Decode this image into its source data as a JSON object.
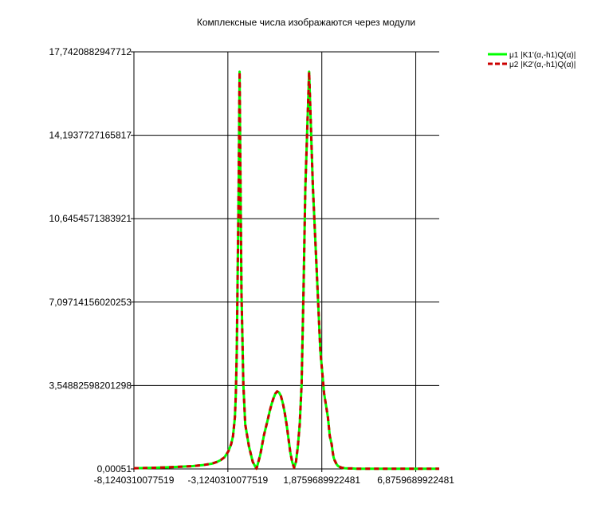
{
  "chart_data": {
    "type": "line",
    "title": "Комплексные числа изображаются через модули",
    "xlabel": "",
    "ylabel": "",
    "xlim": [
      -8.1240310077519,
      8.1240310077519
    ],
    "ylim": [
      0.00051,
      17.7420882947712
    ],
    "x_ticks": [
      -8.1240310077519,
      -3.1240310077519,
      1.8759689922481,
      6.8759689922481
    ],
    "x_tick_labels": [
      "-8,1240310077519",
      "-3,1240310077519",
      "1,8759689922481",
      "6,8759689922481"
    ],
    "y_ticks": [
      0.00051,
      3.54882598201298,
      7.09714156020253,
      10.6454571383921,
      14.1937727165817,
      17.7420882947712
    ],
    "y_tick_labels": [
      "0,00051",
      "3,54882598201298",
      "7,09714156020253",
      "10,6454571383921",
      "14,1937727165817",
      "17,7420882947712"
    ],
    "grid": true,
    "legend_position": "top-right",
    "series": [
      {
        "name": "μ1 |K1'(α,-h1)Q(α)|",
        "color": "#00ff00",
        "style": "solid",
        "x": [
          -8.124,
          -7.0,
          -6.0,
          -5.0,
          -4.5,
          -4.0,
          -3.7,
          -3.5,
          -3.3,
          -3.1,
          -2.95,
          -2.85,
          -2.75,
          -2.7,
          -2.65,
          -2.6,
          -2.55,
          -2.5,
          -2.45,
          -2.4,
          -2.3,
          -2.2,
          -2.0,
          -1.8,
          -1.6,
          -1.4,
          -1.2,
          -1.0,
          -0.9,
          -0.8,
          -0.7,
          -0.6,
          -0.5,
          -0.4,
          -0.3,
          -0.2,
          -0.1,
          0.0,
          0.1,
          0.2,
          0.3,
          0.4,
          0.5,
          0.6,
          0.7,
          0.8,
          0.9,
          1.0,
          1.2,
          1.4,
          1.6,
          1.8,
          2.0,
          2.2,
          2.3,
          2.4,
          2.45,
          2.5,
          2.55,
          2.6,
          2.65,
          2.7,
          2.75,
          2.85,
          2.95,
          3.1,
          3.3,
          3.5,
          3.7,
          4.0,
          4.5,
          5.0,
          6.0,
          7.0,
          8.124
        ],
        "values": [
          0.03,
          0.05,
          0.08,
          0.12,
          0.16,
          0.22,
          0.3,
          0.38,
          0.5,
          0.75,
          1.05,
          1.4,
          2.2,
          3.2,
          5.0,
          8.5,
          12.0,
          16.9,
          12.0,
          7.5,
          3.6,
          1.9,
          0.95,
          0.3,
          0.01,
          0.6,
          1.45,
          2.1,
          2.45,
          2.75,
          3.0,
          3.2,
          3.3,
          3.25,
          3.1,
          2.8,
          2.4,
          1.9,
          1.3,
          0.7,
          0.3,
          0.05,
          0.3,
          0.95,
          1.9,
          3.6,
          7.5,
          12.0,
          16.9,
          12.0,
          8.5,
          5.0,
          3.2,
          2.2,
          1.4,
          1.05,
          0.75,
          0.5,
          0.38,
          0.3,
          0.22,
          0.16,
          0.12,
          0.08,
          0.05,
          0.03,
          0.02,
          0.02,
          0.01,
          0.01,
          0.01,
          0.01,
          0.01,
          0.01,
          0.01
        ]
      },
      {
        "name": "μ2 |K2'(α,-h1)Q(α)|",
        "color": "#cc0000",
        "style": "dashed",
        "x": [
          -8.124,
          -7.0,
          -6.0,
          -5.0,
          -4.5,
          -4.0,
          -3.7,
          -3.5,
          -3.3,
          -3.1,
          -2.95,
          -2.85,
          -2.75,
          -2.7,
          -2.65,
          -2.6,
          -2.55,
          -2.5,
          -2.45,
          -2.4,
          -2.3,
          -2.2,
          -2.0,
          -1.8,
          -1.6,
          -1.4,
          -1.2,
          -1.0,
          -0.9,
          -0.8,
          -0.7,
          -0.6,
          -0.5,
          -0.4,
          -0.3,
          -0.2,
          -0.1,
          0.0,
          0.1,
          0.2,
          0.3,
          0.4,
          0.5,
          0.6,
          0.7,
          0.8,
          0.9,
          1.0,
          1.2,
          1.4,
          1.6,
          1.8,
          2.0,
          2.2,
          2.3,
          2.4,
          2.45,
          2.5,
          2.55,
          2.6,
          2.65,
          2.7,
          2.75,
          2.85,
          2.95,
          3.1,
          3.3,
          3.5,
          3.7,
          4.0,
          4.5,
          5.0,
          6.0,
          7.0,
          8.124
        ],
        "values": [
          0.03,
          0.05,
          0.08,
          0.12,
          0.16,
          0.22,
          0.3,
          0.38,
          0.5,
          0.75,
          1.05,
          1.4,
          2.2,
          3.2,
          5.0,
          8.5,
          12.0,
          16.9,
          12.0,
          7.5,
          3.6,
          1.9,
          0.95,
          0.3,
          0.01,
          0.6,
          1.45,
          2.1,
          2.45,
          2.75,
          3.0,
          3.2,
          3.3,
          3.25,
          3.1,
          2.8,
          2.4,
          1.9,
          1.3,
          0.7,
          0.3,
          0.05,
          0.3,
          0.95,
          1.9,
          3.6,
          7.5,
          12.0,
          16.9,
          12.0,
          8.5,
          5.0,
          3.2,
          2.2,
          1.4,
          1.05,
          0.75,
          0.5,
          0.38,
          0.3,
          0.22,
          0.16,
          0.12,
          0.08,
          0.05,
          0.03,
          0.02,
          0.02,
          0.01,
          0.01,
          0.01,
          0.01,
          0.01,
          0.01,
          0.01
        ]
      }
    ]
  }
}
